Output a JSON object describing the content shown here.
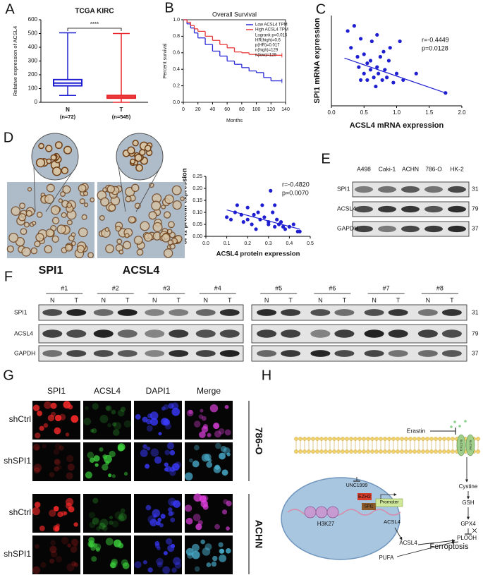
{
  "panel_labels": [
    "A",
    "B",
    "C",
    "D",
    "E",
    "F",
    "G",
    "H"
  ],
  "chart_data": [
    {
      "type": "box",
      "title": "TCGA KIRC",
      "y_label": "Relative expression of ACSL4",
      "categories": [
        "N",
        "T"
      ],
      "category_notes": [
        "(n=72)",
        "(n=545)"
      ],
      "min": [
        50,
        0
      ],
      "q1": [
        120,
        30
      ],
      "median": [
        140,
        40
      ],
      "q3": [
        165,
        50
      ],
      "max": [
        505,
        500
      ],
      "colors": [
        "#1f1fd1",
        "#e8262a"
      ],
      "ylim": [
        0,
        600
      ],
      "yticks": [
        0,
        100,
        200,
        300,
        400,
        500,
        600
      ],
      "annotation": "****"
    },
    {
      "type": "line",
      "step": true,
      "title": "Overall Survival",
      "x_label": "Months",
      "y_label": "Percent survival",
      "x": [
        0,
        5,
        10,
        15,
        20,
        30,
        40,
        50,
        60,
        70,
        80,
        90,
        100,
        110,
        120,
        135
      ],
      "series": [
        {
          "name": "Low ACSL4 TPM",
          "color": "#2a2ad8",
          "values": [
            1,
            0.95,
            0.9,
            0.84,
            0.78,
            0.7,
            0.62,
            0.56,
            0.5,
            0.46,
            0.42,
            0.38,
            0.36,
            0.3,
            0.26,
            0.26
          ]
        },
        {
          "name": "High ACSL4 TPM",
          "color": "#e83a3a",
          "values": [
            1,
            0.97,
            0.93,
            0.89,
            0.86,
            0.8,
            0.75,
            0.7,
            0.66,
            0.61,
            0.6,
            0.58,
            0.57,
            0.57,
            0.57,
            0.57
          ]
        }
      ],
      "xlim": [
        0,
        140
      ],
      "xticks": [
        0,
        20,
        40,
        60,
        80,
        100,
        120,
        140
      ],
      "ylim": [
        0,
        1
      ],
      "yticks": [
        {
          "value": 0,
          "label": "0.0"
        },
        0.2,
        0.4,
        0.6,
        0.8,
        {
          "value": 1,
          "label": "1.0"
        }
      ],
      "legend": "upper right",
      "stats": [
        "Logrank p=0.015",
        "HR(high)=0.6",
        "p(HR)=0.017",
        "n(high)=129",
        "n(low)=129"
      ]
    },
    {
      "type": "scatter",
      "x_label": "ACSL4 mRNA expression",
      "y_label": "SPI1 mRNA expression",
      "color": "#1f1fd1",
      "x": [
        0.25,
        0.3,
        0.35,
        0.4,
        0.42,
        0.45,
        0.5,
        0.5,
        0.55,
        0.6,
        0.6,
        0.62,
        0.65,
        0.7,
        0.7,
        0.72,
        0.75,
        0.78,
        0.8,
        0.82,
        0.85,
        0.88,
        0.9,
        0.95,
        1.0,
        1.05,
        1.1,
        1.3,
        1.75,
        0.45,
        0.55,
        0.68
      ],
      "values": [
        0.58,
        0.45,
        0.62,
        0.38,
        0.3,
        0.52,
        0.25,
        0.4,
        0.2,
        0.35,
        0.28,
        0.5,
        0.22,
        0.55,
        0.3,
        0.25,
        0.38,
        0.2,
        0.42,
        0.28,
        0.22,
        0.35,
        0.45,
        0.18,
        0.25,
        0.5,
        0.2,
        0.25,
        0.1,
        0.2,
        0.33,
        0.15
      ],
      "fit": {
        "x": [
          0.2,
          1.75
        ],
        "values": [
          0.37,
          0.1
        ]
      },
      "xlim": [
        0,
        2
      ],
      "xticks": [
        {
          "value": 0,
          "label": "0.0"
        },
        0.5,
        {
          "value": 1,
          "label": "1.0"
        },
        1.5,
        {
          "value": 2,
          "label": "2.0"
        }
      ],
      "ylim": [
        0,
        0.7
      ],
      "stats": [
        "r=-0.4449",
        "p=0.0128"
      ]
    },
    {
      "type": "scatter",
      "x_label": "ACSL4 protein expression",
      "y_label": "SPI1 protein expression",
      "color": "#1f1fd1",
      "x": [
        0.1,
        0.12,
        0.14,
        0.15,
        0.17,
        0.18,
        0.2,
        0.2,
        0.22,
        0.23,
        0.24,
        0.25,
        0.27,
        0.28,
        0.3,
        0.3,
        0.31,
        0.32,
        0.33,
        0.34,
        0.35,
        0.36,
        0.37,
        0.38,
        0.4,
        0.42,
        0.44,
        0.45,
        0.33,
        0.26
      ],
      "values": [
        0.08,
        0.07,
        0.1,
        0.13,
        0.09,
        0.06,
        0.07,
        0.12,
        0.05,
        0.09,
        0.03,
        0.1,
        0.13,
        0.08,
        0.06,
        0.05,
        0.19,
        0.1,
        0.04,
        0.07,
        0.05,
        0.06,
        0.04,
        0.03,
        0.04,
        0.05,
        0.02,
        0.02,
        0.13,
        0.07
      ],
      "fit": {
        "x": [
          0.1,
          0.45
        ],
        "values": [
          0.11,
          0.03
        ]
      },
      "xlim": [
        0,
        0.5
      ],
      "xticks": [
        {
          "value": 0,
          "label": "0.0"
        },
        0.1,
        0.2,
        0.3,
        0.4,
        0.5
      ],
      "ylim": [
        0,
        0.25
      ],
      "yticks": [
        {
          "value": 0,
          "label": "0.00"
        },
        0.05,
        {
          "value": 0.1,
          "label": "0.10"
        },
        0.15,
        {
          "value": 0.2,
          "label": "0.20"
        },
        0.25
      ],
      "stats": [
        "r=-0.4820",
        "p=0.0070"
      ]
    }
  ],
  "panel_d": {
    "image_labels": [
      "SPI1",
      "ACSL4"
    ]
  },
  "panel_e": {
    "lanes": [
      "A498",
      "Caki-1",
      "ACHN",
      "786-O",
      "HK-2"
    ],
    "rows": [
      "SPI1",
      "ACSL4",
      "GAPDH"
    ],
    "sizes": [
      31,
      79,
      37
    ]
  },
  "panel_f": {
    "groups": [
      "#1",
      "#2",
      "#3",
      "#4",
      "#5",
      "#6",
      "#7",
      "#8"
    ],
    "lanes": [
      "N",
      "T"
    ],
    "rows": [
      "SPI1",
      "ACSL4",
      "GAPDH"
    ],
    "sizes": [
      31,
      79,
      37
    ]
  },
  "panel_g": {
    "columns": [
      "SPI1",
      "ACSL4",
      "DAPI1",
      "Merge"
    ],
    "rows": [
      "shCtrl",
      "shSPI1",
      "shCtrl",
      "shSPI1"
    ],
    "cell_lines": [
      "786-O",
      "ACHN"
    ]
  },
  "panel_h": {
    "labels": [
      "Erastin",
      "SLC7A11",
      "SLC3A2",
      "Cystine",
      "GSH",
      "GPX4",
      "PLOOH",
      "Ferroptosis",
      "PUFA",
      "ACSL4",
      "UNC1999",
      "EZH2",
      "SPI1",
      "Promoter",
      "H3K27",
      "ACSL4"
    ]
  }
}
